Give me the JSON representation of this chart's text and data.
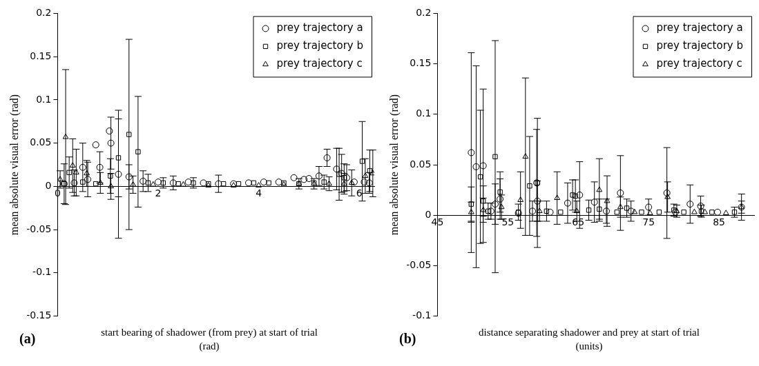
{
  "chart_data": [
    {
      "type": "scatter",
      "xlabel": "start bearing of shadower (from prey) at start of trial (rad)",
      "ylabel": "mean absolute visual error (rad)",
      "annotations": [
        "(a)"
      ],
      "xlim": [
        0,
        6.3
      ],
      "ylim": [
        -0.15,
        0.2
      ],
      "xticks": [
        0,
        2,
        4,
        6
      ],
      "yticks": [
        -0.15,
        -0.1,
        -0.05,
        0,
        0.05,
        0.1,
        0.15,
        0.2
      ],
      "grid": false,
      "legend": "top right",
      "series": [
        {
          "name": "prey trajectory a",
          "color": "#000000",
          "marker": "circle",
          "x": [
            0,
            0.13,
            0.33,
            0.5,
            0.6,
            0.76,
            0.84,
            1.03,
            1.06,
            1.21,
            1.42,
            1.7,
            2.0,
            2.3,
            2.6,
            2.9,
            3.2,
            3.5,
            3.8,
            4.1,
            4.4,
            4.7,
            4.9,
            5.0,
            5.2,
            5.36,
            5.55,
            5.65,
            5.75,
            5.9,
            6.1,
            6.2
          ],
          "values": [
            0.003,
            0.003,
            0.004,
            0.022,
            0.008,
            0.048,
            0.022,
            0.064,
            0.05,
            0.014,
            0.011,
            0.006,
            0.005,
            0.004,
            0.005,
            0.004,
            0.003,
            0.003,
            0.004,
            0.005,
            0.005,
            0.01,
            0.008,
            0.009,
            0.012,
            0.033,
            0.02,
            0.015,
            0.01,
            0.005,
            0.005,
            0.004
          ],
          "errors": [
            null,
            0.023,
            0.015,
            0.028,
            0.02,
            null,
            0.018,
            null,
            0.03,
            0.074,
            0.014,
            0.012,
            null,
            0.008,
            null,
            null,
            0.01,
            null,
            null,
            null,
            null,
            null,
            null,
            null,
            0.011,
            0.01,
            0.024,
            0.022,
            0.015,
            null,
            null,
            0.012
          ]
        },
        {
          "name": "prey trajectory b",
          "color": "#000000",
          "marker": "square",
          "x": [
            0.23,
            0.13,
            0.5,
            0.76,
            1.05,
            1.21,
            1.42,
            1.6,
            1.8,
            2.1,
            2.4,
            2.7,
            3.0,
            3.3,
            3.6,
            3.9,
            4.2,
            4.5,
            4.8,
            5.1,
            5.3,
            5.6,
            5.7,
            6.06,
            6.21
          ],
          "values": [
            0.016,
            0.003,
            0.005,
            0.003,
            0.012,
            0.033,
            0.06,
            0.04,
            0.004,
            0.004,
            0.003,
            0.004,
            0.003,
            0.003,
            0.003,
            0.004,
            0.004,
            0.004,
            0.003,
            0.004,
            0.005,
            0.014,
            0.01,
            0.029,
            0.018
          ],
          "errors": [
            0.018,
            null,
            null,
            null,
            0.02,
            0.045,
            0.11,
            0.064,
            0.01,
            0.006,
            null,
            0.006,
            null,
            null,
            null,
            null,
            null,
            null,
            null,
            null,
            0.008,
            0.03,
            0.016,
            0.046,
            0.024
          ]
        },
        {
          "name": "prey trajectory c",
          "color": "#000000",
          "marker": "triangle",
          "x": [
            0.05,
            0.16,
            0.3,
            0.37,
            0.58,
            0.85,
            1.06,
            1.5,
            1.9,
            2.5,
            3.0,
            3.5,
            4.0,
            4.5,
            4.8,
            5.1,
            5.4,
            5.7,
            5.85,
            6.12,
            6.27
          ],
          "values": [
            0.008,
            0.057,
            0.024,
            0.016,
            0.015,
            0.004,
            0,
            0.002,
            0.002,
            0.002,
            0.001,
            0.001,
            0.001,
            0.002,
            0.003,
            0.003,
            0.003,
            0.003,
            0.004,
            0.012,
            0.015
          ],
          "errors": [
            0.01,
            0.078,
            0.031,
            0.027,
            0.015,
            0.012,
            0.015,
            0.01,
            null,
            null,
            null,
            null,
            null,
            null,
            0.006,
            0.006,
            0.008,
            0.012,
            0.015,
            0.02,
            0.027
          ]
        }
      ]
    },
    {
      "type": "scatter",
      "xlabel": "distance separating shadower and prey at start of trial (units)",
      "ylabel": "mean absolute visual error (rad)",
      "annotations": [
        "(b)"
      ],
      "xlim": [
        45,
        90
      ],
      "ylim": [
        -0.1,
        0.2
      ],
      "xticks": [
        45,
        55,
        65,
        75,
        85
      ],
      "yticks": [
        -0.1,
        -0.05,
        0,
        0.05,
        0.1,
        0.15,
        0.2
      ],
      "grid": false,
      "legend": "top right",
      "series": [
        {
          "name": "prey trajectory a",
          "color": "#000000",
          "marker": "circle",
          "x": [
            49.8,
            50.5,
            51.5,
            52.6,
            53.2,
            53.9,
            56.5,
            58.5,
            59.1,
            59.2,
            61.0,
            63.5,
            65.2,
            67.3,
            69.0,
            71.0,
            72.5,
            75.0,
            77.6,
            78.8,
            80.9,
            82.4,
            84.8,
            88.2
          ],
          "values": [
            0.062,
            0.048,
            0.049,
            0.004,
            0.011,
            0.016,
            0.002,
            0.004,
            0.032,
            0.014,
            0.003,
            0.012,
            0.02,
            0.013,
            0.004,
            0.022,
            0.004,
            0.008,
            0.022,
            0.003,
            0.011,
            0.009,
            0.003,
            0.008
          ],
          "errors": [
            0.099,
            0.1,
            0.076,
            0.008,
            0.02,
            0.02,
            null,
            0.01,
            0.053,
            0.02,
            null,
            0.02,
            0.033,
            0.02,
            0.012,
            0.037,
            0.01,
            0.008,
            0.045,
            null,
            0.019,
            0.01,
            null,
            0.006
          ]
        },
        {
          "name": "prey trajectory b",
          "color": "#000000",
          "marker": "square",
          "x": [
            49.8,
            51.1,
            51.5,
            52.2,
            53.2,
            53.9,
            56.5,
            58.1,
            59.2,
            60.5,
            62.5,
            64.2,
            64.6,
            66.5,
            68.0,
            70.5,
            71.9,
            74.0,
            76.5,
            78.6,
            80.0,
            82.5,
            84.0,
            87.2
          ],
          "values": [
            0.011,
            0.038,
            0.014,
            0.004,
            0.058,
            0.023,
            0.003,
            0.029,
            0.032,
            0.004,
            0.003,
            0.02,
            0.019,
            0.005,
            0.006,
            0.003,
            0.007,
            0.003,
            0.003,
            0.005,
            0.003,
            0.004,
            0.003,
            0.003
          ],
          "errors": [
            0.017,
            0.066,
            0.015,
            0.008,
            0.115,
            0.02,
            0.008,
            0.049,
            0.064,
            0.01,
            null,
            0.015,
            0.016,
            0.01,
            0.01,
            null,
            0.009,
            null,
            null,
            0.006,
            null,
            0.006,
            null,
            0.005
          ]
        },
        {
          "name": "prey trajectory c",
          "color": "#000000",
          "marker": "triangle",
          "x": [
            49.8,
            51.5,
            54.1,
            56.8,
            57.5,
            59.5,
            62.0,
            64.8,
            68.0,
            69.1,
            71.0,
            73.0,
            75.2,
            77.7,
            79.0,
            81.5,
            83.0,
            86.0,
            88.2
          ],
          "values": [
            0.003,
            0.005,
            0.008,
            0.015,
            0.058,
            0.004,
            0.017,
            0.004,
            0.025,
            0.014,
            0.008,
            0.003,
            0.002,
            0.018,
            0.004,
            0.003,
            0.003,
            0.002,
            0.008
          ],
          "errors": [
            0.01,
            0.012,
            0.012,
            0.028,
            0.078,
            0.01,
            0.026,
            0.01,
            0.031,
            0.025,
            0.01,
            null,
            null,
            0.015,
            0.006,
            null,
            null,
            null,
            0.013
          ]
        }
      ]
    }
  ]
}
